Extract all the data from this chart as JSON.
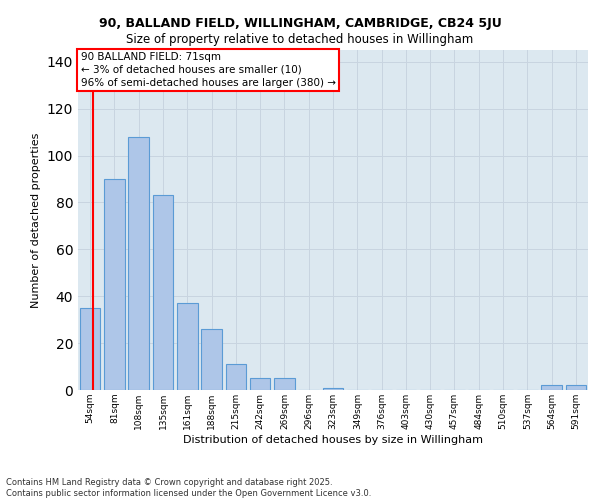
{
  "title1": "90, BALLAND FIELD, WILLINGHAM, CAMBRIDGE, CB24 5JU",
  "title2": "Size of property relative to detached houses in Willingham",
  "xlabel": "Distribution of detached houses by size in Willingham",
  "ylabel": "Number of detached properties",
  "categories": [
    "54sqm",
    "81sqm",
    "108sqm",
    "135sqm",
    "161sqm",
    "188sqm",
    "215sqm",
    "242sqm",
    "269sqm",
    "296sqm",
    "323sqm",
    "349sqm",
    "376sqm",
    "403sqm",
    "430sqm",
    "457sqm",
    "484sqm",
    "510sqm",
    "537sqm",
    "564sqm",
    "591sqm"
  ],
  "bar_values": [
    35,
    90,
    108,
    83,
    37,
    26,
    11,
    5,
    5,
    0,
    1,
    0,
    0,
    0,
    0,
    0,
    0,
    0,
    0,
    2,
    2
  ],
  "bar_color": "#aec6e8",
  "bar_edge_color": "#5b9bd5",
  "subject_line_color": "red",
  "annotation_title": "90 BALLAND FIELD: 71sqm",
  "annotation_line1": "← 3% of detached houses are smaller (10)",
  "annotation_line2": "96% of semi-detached houses are larger (380) →",
  "ylim": [
    0,
    145
  ],
  "yticks": [
    0,
    20,
    40,
    60,
    80,
    100,
    120,
    140
  ],
  "grid_color": "#c8d4e0",
  "bg_color": "#dce8f0",
  "footer1": "Contains HM Land Registry data © Crown copyright and database right 2025.",
  "footer2": "Contains public sector information licensed under the Open Government Licence v3.0."
}
